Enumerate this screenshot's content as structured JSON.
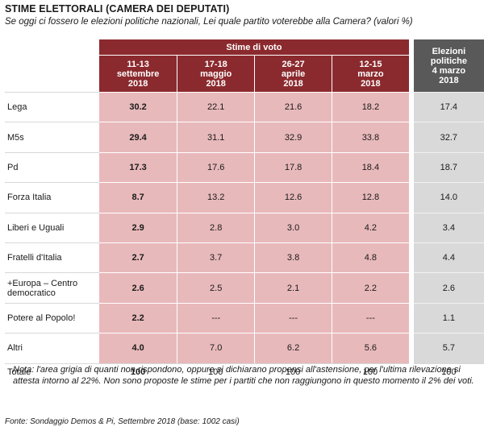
{
  "title": "STIME ELETTORALI (CAMERA  DEI DEPUTATI)",
  "subtitle": "Se oggi ci fossero le elezioni politiche nazionali, Lei quale partito voterebbe alla Camera? (valori %)",
  "group_header": "Stime di voto",
  "columns": [
    {
      "line1": "11-13",
      "line2": "settembre",
      "line3": "2018"
    },
    {
      "line1": "17-18",
      "line2": "maggio",
      "line3": "2018"
    },
    {
      "line1": "26-27",
      "line2": "aprile",
      "line3": "2018"
    },
    {
      "line1": "12-15",
      "line2": "marzo",
      "line3": "2018"
    }
  ],
  "elections_header": {
    "line1": "Elezioni",
    "line2": "politiche",
    "line3": "4 marzo",
    "line4": "2018"
  },
  "rows": [
    {
      "party": "Lega",
      "values": [
        "30.2",
        "22.1",
        "21.6",
        "18.2"
      ],
      "elections": "17.4"
    },
    {
      "party": "M5s",
      "values": [
        "29.4",
        "31.1",
        "32.9",
        "33.8"
      ],
      "elections": "32.7"
    },
    {
      "party": "Pd",
      "values": [
        "17.3",
        "17.6",
        "17.8",
        "18.4"
      ],
      "elections": "18.7"
    },
    {
      "party": "Forza Italia",
      "values": [
        "8.7",
        "13.2",
        "12.6",
        "12.8"
      ],
      "elections": "14.0"
    },
    {
      "party": "Liberi e Uguali",
      "values": [
        "2.9",
        "2.8",
        "3.0",
        "4.2"
      ],
      "elections": "3.4"
    },
    {
      "party": "Fratelli d'Italia",
      "values": [
        "2.7",
        "3.7",
        "3.8",
        "4.8"
      ],
      "elections": "4.4"
    },
    {
      "party": "+Europa – Centro democratico",
      "values": [
        "2.6",
        "2.5",
        "2.1",
        "2.2"
      ],
      "elections": "2.6"
    },
    {
      "party": "Potere al Popolo!",
      "values": [
        "2.2",
        "---",
        "---",
        "---"
      ],
      "elections": "1.1"
    },
    {
      "party": "Altri",
      "values": [
        "4.0",
        "7.0",
        "6.2",
        "5.6"
      ],
      "elections": "5.7"
    }
  ],
  "total": {
    "label": "Totale",
    "values": [
      "100",
      "100",
      "100",
      "100"
    ],
    "elections": "100"
  },
  "note": "Nota: l'area grigia di quanti non rispondono, oppure si dichiarano propensi all'astensione, per l'ultima rilevazione si attesta intorno al 22%. Non sono proposte le stime per i partiti che non raggiungono in questo momento il 2% dei voti.",
  "source": "Fonte: Sondaggio Demos & Pi, Settembre 2018 (base: 1002 casi)",
  "colors": {
    "header_red": "#8b2a2e",
    "cell_pink": "#e8b9bb",
    "header_gray": "#595959",
    "cell_gray": "#d9d9d9"
  }
}
